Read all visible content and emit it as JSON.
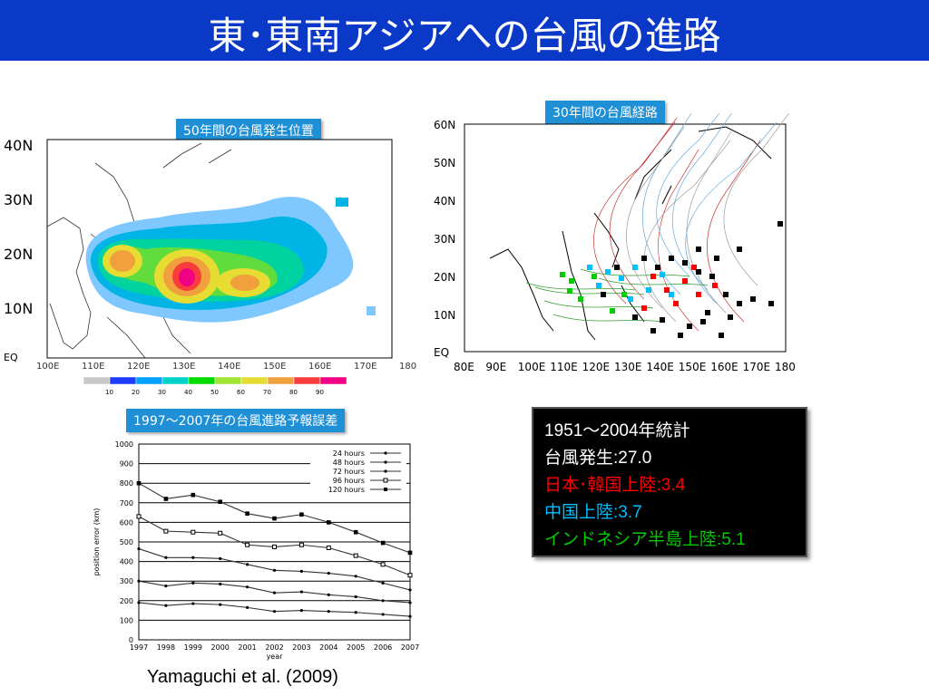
{
  "slide": {
    "title": "東･東南アジアへの台風の進路",
    "citation": "Yamaguchi et al. (2009)"
  },
  "colors": {
    "title_bg": "#0a39c8",
    "label_bg": "#1f8fd6",
    "japan_korea": "#ff0000",
    "china": "#00bfff",
    "indochina": "#00cc00"
  },
  "genesis_map": {
    "label": "50年間の台風発生位置",
    "lat_labels": [
      "40N",
      "30N",
      "20N",
      "10N",
      "EQ"
    ],
    "lon_labels": [
      "100E",
      "110E",
      "120E",
      "130E",
      "140E",
      "150E",
      "160E",
      "170E",
      "180"
    ],
    "colorbar_ticks": [
      "10",
      "20",
      "30",
      "40",
      "50",
      "60",
      "70",
      "80",
      "90"
    ],
    "colorbar_colors": [
      "#c8c8c8",
      "#1e3cff",
      "#00a0ff",
      "#00d2c8",
      "#00dc00",
      "#a0e632",
      "#e6dc32",
      "#f0a03c",
      "#fa3c3c",
      "#f00082"
    ]
  },
  "track_map": {
    "label": "30年間の台風経路",
    "lat_labels": [
      "60N",
      "50N",
      "40N",
      "30N",
      "20N",
      "10N",
      "EQ"
    ],
    "lon_labels": [
      "80E",
      "90E",
      "100E",
      "110E",
      "120E",
      "130E",
      "140E",
      "150E",
      "160E",
      "170E",
      "180"
    ]
  },
  "stats": {
    "line1": "1951～2004年統計",
    "line2": "台風発生:27.0",
    "line3": "日本･韓国上陸:3.4",
    "line4": "中国上陸:3.7",
    "line5": "インドネシア半島上陸:5.1"
  },
  "chart_data": {
    "type": "line",
    "title": "1997～2007年の台風進路予報誤差",
    "xlabel": "year",
    "ylabel": "position error (km)",
    "x": [
      "1997",
      "1998",
      "1999",
      "2000",
      "2001",
      "2002",
      "2003",
      "2004",
      "2005",
      "2006",
      "2007"
    ],
    "ylim": [
      0,
      1000
    ],
    "yticks": [
      "0",
      "100",
      "200",
      "300",
      "400",
      "500",
      "600",
      "700",
      "800",
      "900",
      "1000"
    ],
    "legend_position": "top-right",
    "series": [
      {
        "name": "24 hours",
        "values": [
          190,
          175,
          185,
          180,
          165,
          145,
          150,
          145,
          140,
          130,
          120
        ]
      },
      {
        "name": "48 hours",
        "values": [
          300,
          275,
          290,
          285,
          270,
          240,
          245,
          230,
          220,
          200,
          190
        ]
      },
      {
        "name": "72 hours",
        "values": [
          465,
          420,
          420,
          415,
          385,
          355,
          350,
          340,
          325,
          290,
          255
        ]
      },
      {
        "name": "96 hours",
        "values": [
          630,
          555,
          550,
          545,
          485,
          475,
          485,
          470,
          430,
          385,
          330
        ]
      },
      {
        "name": "120 hours",
        "values": [
          800,
          720,
          740,
          705,
          645,
          620,
          640,
          600,
          550,
          495,
          445
        ]
      }
    ]
  }
}
